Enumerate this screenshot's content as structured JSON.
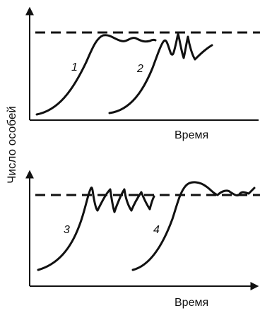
{
  "y_axis_label": "Число особей",
  "panels": [
    {
      "x_axis_label": "Время",
      "curve_labels": [
        "1",
        "2"
      ]
    },
    {
      "x_axis_label": "Время",
      "curve_labels": [
        "3",
        "4"
      ]
    }
  ]
}
